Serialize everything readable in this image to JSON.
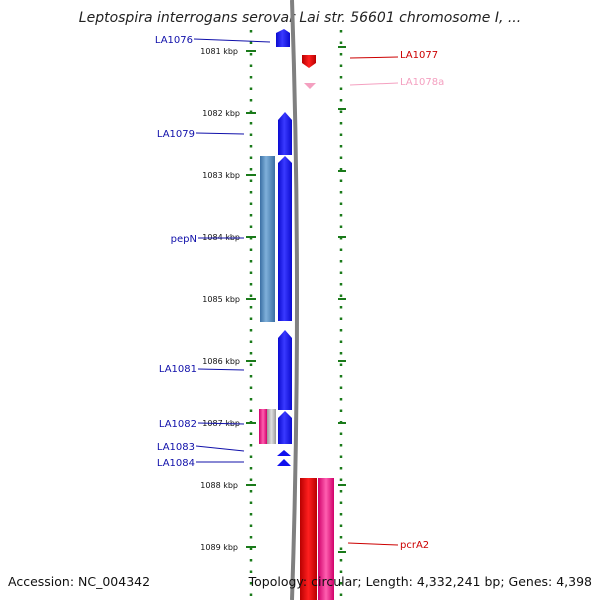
{
  "title": "Leptospira interrogans serovar Lai str. 56601 chromosome I, ...",
  "accession": "Accession: NC_004342",
  "topology": "Topology: circular; Length: 4,332,241 bp; Genes: 4,398",
  "colors": {
    "forward_gene": "#1010ee",
    "reverse_gene": "#dd1111",
    "rna_gene": "#f4a0c0",
    "cds_feature": "#4a86bb",
    "region_feature": "#e01f8a",
    "tick": "#1a7a1a",
    "backbone": "#808080",
    "left_label": "#1010aa",
    "right_label": "#cc0000"
  },
  "scale": {
    "labels": [
      "1081 kbp",
      "1082 kbp",
      "1083 kbp",
      "1084 kbp",
      "1085 kbp",
      "1086 kbp",
      "1087 kbp",
      "1088 kbp",
      "1089 kbp"
    ]
  },
  "gene_labels": {
    "left": [
      "LA1076",
      "LA1079",
      "pepN",
      "LA1081",
      "LA1082",
      "LA1083",
      "LA1084"
    ],
    "right": [
      "LA1077",
      "LA1078a",
      "pcrA2"
    ]
  }
}
